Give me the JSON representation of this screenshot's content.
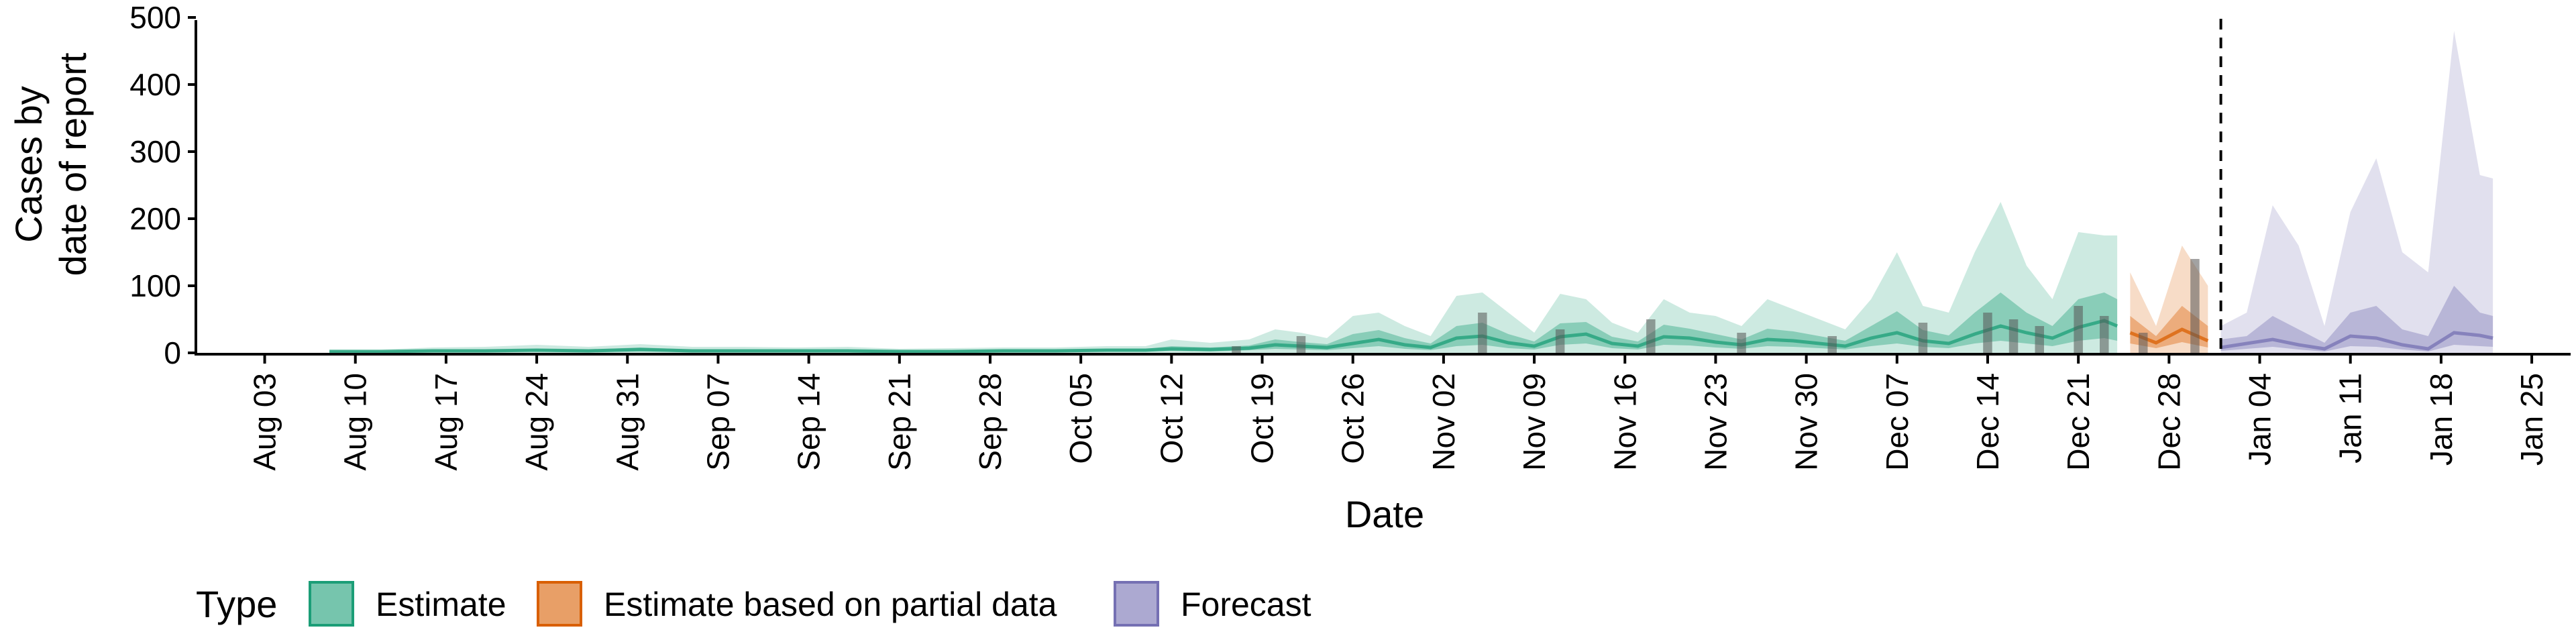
{
  "chart_data": {
    "type": "area",
    "xlabel": "Date",
    "ylabel_lines": [
      "Cases by",
      "date of report"
    ],
    "ylim": [
      0,
      500
    ],
    "y_ticks": [
      0,
      100,
      200,
      300,
      400,
      500
    ],
    "x_range": [
      "2020-07-29",
      "2021-01-28"
    ],
    "x_tick_dates": [
      "2020-08-03",
      "2020-08-10",
      "2020-08-17",
      "2020-08-24",
      "2020-08-31",
      "2020-09-07",
      "2020-09-14",
      "2020-09-21",
      "2020-09-28",
      "2020-10-05",
      "2020-10-12",
      "2020-10-19",
      "2020-10-26",
      "2020-11-02",
      "2020-11-09",
      "2020-11-16",
      "2020-11-23",
      "2020-11-30",
      "2020-12-07",
      "2020-12-14",
      "2020-12-21",
      "2020-12-28",
      "2021-01-04",
      "2021-01-11",
      "2021-01-18",
      "2021-01-25"
    ],
    "x_tick_labels": [
      "Aug 03",
      "Aug 10",
      "Aug 17",
      "Aug 24",
      "Aug 31",
      "Sep 07",
      "Sep 14",
      "Sep 21",
      "Sep 28",
      "Oct 05",
      "Oct 12",
      "Oct 19",
      "Oct 26",
      "Nov 02",
      "Nov 09",
      "Nov 16",
      "Nov 23",
      "Nov 30",
      "Dec 07",
      "Dec 14",
      "Dec 21",
      "Dec 28",
      "Jan 04",
      "Jan 11",
      "Jan 18",
      "Jan 25"
    ],
    "forecast_start": "2021-01-01",
    "legend": {
      "title": "Type",
      "position": "bottom",
      "entries": [
        {
          "label": "Estimate",
          "color": "#1b9e77"
        },
        {
          "label": "Estimate based on partial data",
          "color": "#d95f02"
        },
        {
          "label": "Forecast",
          "color": "#7570b3"
        }
      ]
    },
    "series": [
      {
        "type_index": 0,
        "dates": [
          "2020-08-08",
          "2020-08-12",
          "2020-08-16",
          "2020-08-20",
          "2020-08-24",
          "2020-08-28",
          "2020-09-01",
          "2020-09-05",
          "2020-09-09",
          "2020-09-13",
          "2020-09-17",
          "2020-09-21",
          "2020-09-25",
          "2020-09-29",
          "2020-10-03",
          "2020-10-07",
          "2020-10-10",
          "2020-10-12",
          "2020-10-15",
          "2020-10-18",
          "2020-10-20",
          "2020-10-22",
          "2020-10-24",
          "2020-10-26",
          "2020-10-28",
          "2020-10-30",
          "2020-11-01",
          "2020-11-03",
          "2020-11-05",
          "2020-11-07",
          "2020-11-09",
          "2020-11-11",
          "2020-11-13",
          "2020-11-15",
          "2020-11-17",
          "2020-11-19",
          "2020-11-21",
          "2020-11-23",
          "2020-11-25",
          "2020-11-27",
          "2020-11-29",
          "2020-12-01",
          "2020-12-03",
          "2020-12-05",
          "2020-12-07",
          "2020-12-09",
          "2020-12-11",
          "2020-12-13",
          "2020-12-15",
          "2020-12-17",
          "2020-12-19",
          "2020-12-21",
          "2020-12-23",
          "2020-12-24"
        ],
        "median": [
          2,
          2,
          3,
          3,
          4,
          3,
          5,
          3,
          3,
          3,
          3,
          2,
          2,
          3,
          3,
          4,
          4,
          6,
          5,
          7,
          12,
          10,
          8,
          14,
          20,
          12,
          8,
          22,
          25,
          15,
          10,
          24,
          28,
          14,
          10,
          24,
          22,
          16,
          12,
          20,
          18,
          14,
          10,
          22,
          30,
          18,
          14,
          28,
          40,
          30,
          22,
          38,
          48,
          40
        ],
        "lower90": [
          0,
          0,
          0,
          0,
          0,
          0,
          0,
          0,
          0,
          0,
          0,
          0,
          0,
          0,
          0,
          0,
          0,
          0,
          0,
          0,
          0,
          0,
          0,
          0,
          0,
          0,
          0,
          0,
          0,
          0,
          0,
          0,
          0,
          0,
          0,
          0,
          0,
          0,
          0,
          0,
          0,
          0,
          0,
          0,
          0,
          0,
          0,
          0,
          0,
          0,
          0,
          0,
          0,
          0
        ],
        "upper90": [
          5,
          5,
          8,
          9,
          12,
          9,
          13,
          9,
          9,
          8,
          9,
          6,
          7,
          8,
          8,
          10,
          10,
          20,
          15,
          20,
          35,
          30,
          22,
          55,
          60,
          40,
          25,
          85,
          90,
          60,
          30,
          88,
          80,
          45,
          30,
          80,
          60,
          55,
          40,
          80,
          65,
          50,
          35,
          80,
          150,
          70,
          60,
          150,
          225,
          130,
          80,
          180,
          175,
          175
        ],
        "lower50": [
          1,
          1,
          1,
          1,
          2,
          1,
          2,
          1,
          1,
          1,
          1,
          1,
          1,
          1,
          1,
          2,
          2,
          3,
          2,
          4,
          6,
          5,
          4,
          7,
          10,
          6,
          4,
          10,
          12,
          7,
          5,
          12,
          14,
          7,
          5,
          12,
          11,
          8,
          6,
          10,
          9,
          7,
          5,
          10,
          14,
          9,
          7,
          14,
          18,
          14,
          10,
          18,
          22,
          18
        ],
        "upper50": [
          3,
          3,
          5,
          5,
          6,
          5,
          8,
          5,
          5,
          5,
          5,
          4,
          4,
          5,
          5,
          6,
          6,
          10,
          8,
          11,
          20,
          16,
          13,
          28,
          34,
          22,
          14,
          40,
          45,
          28,
          17,
          44,
          46,
          24,
          17,
          42,
          36,
          28,
          20,
          36,
          32,
          25,
          18,
          40,
          62,
          34,
          26,
          60,
          90,
          60,
          40,
          80,
          90,
          80
        ]
      },
      {
        "type_index": 1,
        "dates": [
          "2020-12-25",
          "2020-12-27",
          "2020-12-29",
          "2020-12-31"
        ],
        "median": [
          30,
          15,
          35,
          18
        ],
        "lower90": [
          0,
          0,
          0,
          0
        ],
        "upper90": [
          120,
          40,
          160,
          100
        ],
        "lower50": [
          14,
          7,
          16,
          8
        ],
        "upper50": [
          55,
          25,
          70,
          40
        ]
      },
      {
        "type_index": 2,
        "dates": [
          "2021-01-01",
          "2021-01-03",
          "2021-01-05",
          "2021-01-07",
          "2021-01-09",
          "2021-01-11",
          "2021-01-13",
          "2021-01-15",
          "2021-01-17",
          "2021-01-19",
          "2021-01-21",
          "2021-01-22"
        ],
        "median": [
          8,
          14,
          20,
          12,
          6,
          25,
          22,
          12,
          6,
          30,
          26,
          22
        ],
        "lower90": [
          0,
          0,
          0,
          0,
          0,
          0,
          0,
          0,
          0,
          0,
          0,
          0
        ],
        "upper90": [
          40,
          60,
          220,
          160,
          40,
          210,
          290,
          150,
          120,
          480,
          265,
          260
        ],
        "lower50": [
          3,
          6,
          9,
          5,
          2,
          10,
          9,
          5,
          2,
          12,
          10,
          9
        ],
        "upper50": [
          20,
          25,
          55,
          35,
          15,
          60,
          70,
          35,
          25,
          100,
          60,
          55
        ]
      }
    ],
    "bars": {
      "color": "#555555",
      "dates": [
        "2020-10-17",
        "2020-10-22",
        "2020-11-05",
        "2020-11-11",
        "2020-11-18",
        "2020-11-25",
        "2020-12-02",
        "2020-12-09",
        "2020-12-14",
        "2020-12-16",
        "2020-12-18",
        "2020-12-21",
        "2020-12-23",
        "2020-12-26",
        "2020-12-30"
      ],
      "values": [
        10,
        25,
        60,
        35,
        50,
        30,
        25,
        45,
        60,
        50,
        40,
        70,
        55,
        30,
        140
      ]
    }
  }
}
